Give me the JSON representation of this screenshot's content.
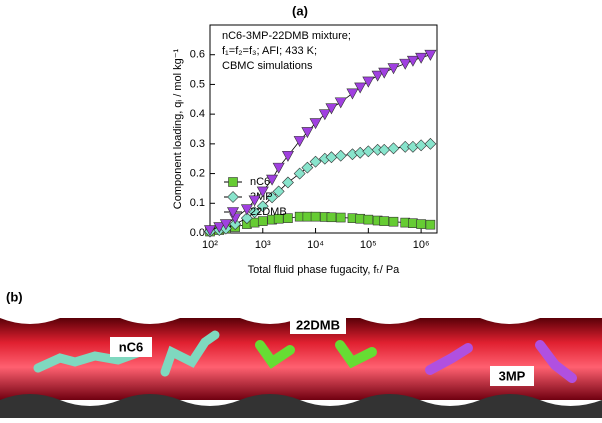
{
  "panel_labels": [
    "(a)",
    "(b)"
  ],
  "chart_data": {
    "type": "line",
    "annotations": [
      "nC6-3MP-22DMB mixture;",
      "f₁=f₂=f₃; AFI; 433 K;",
      "CBMC simulations"
    ],
    "x_label": "Total fluid phase fugacity, fₜ/ Pa",
    "y_label": "Component loading, qᵢ / mol kg⁻¹",
    "x": [
      100,
      150,
      200,
      300,
      500,
      700,
      1000,
      1500,
      2000,
      3000,
      5000,
      7000,
      10000,
      15000,
      20000,
      30000,
      50000,
      70000,
      100000,
      150000,
      200000,
      300000,
      500000,
      700000,
      1000000,
      1500000
    ],
    "series": [
      {
        "name": "nC6",
        "color": "#66cc33",
        "marker": "square",
        "values": [
          0.005,
          0.01,
          0.015,
          0.02,
          0.03,
          0.035,
          0.04,
          0.045,
          0.048,
          0.05,
          0.055,
          0.055,
          0.055,
          0.054,
          0.053,
          0.052,
          0.05,
          0.048,
          0.045,
          0.042,
          0.04,
          0.038,
          0.035,
          0.033,
          0.03,
          0.028
        ]
      },
      {
        "name": "3MP",
        "color": "#88e4cc",
        "marker": "diamond",
        "values": [
          0.005,
          0.01,
          0.015,
          0.03,
          0.05,
          0.07,
          0.09,
          0.12,
          0.14,
          0.17,
          0.2,
          0.22,
          0.24,
          0.25,
          0.255,
          0.26,
          0.265,
          0.27,
          0.275,
          0.28,
          0.28,
          0.285,
          0.29,
          0.29,
          0.295,
          0.3
        ]
      },
      {
        "name": "22DMB",
        "color": "#a040e0",
        "marker": "triangle-down",
        "values": [
          0.01,
          0.02,
          0.03,
          0.05,
          0.08,
          0.11,
          0.14,
          0.18,
          0.22,
          0.26,
          0.31,
          0.34,
          0.37,
          0.4,
          0.42,
          0.44,
          0.47,
          0.49,
          0.51,
          0.53,
          0.54,
          0.555,
          0.57,
          0.58,
          0.59,
          0.6
        ]
      }
    ],
    "xlog": true,
    "xlim": [
      100,
      2000000
    ],
    "xticks": [
      {
        "value": 100,
        "label": "10²"
      },
      {
        "value": 1000,
        "label": "10³"
      },
      {
        "value": 10000,
        "label": "10⁴"
      },
      {
        "value": 100000,
        "label": "10⁵"
      },
      {
        "value": 1000000,
        "label": "10⁶"
      }
    ],
    "ylim": [
      0,
      0.7
    ],
    "yticks": [
      {
        "value": 0,
        "label": "0.0"
      },
      0.1,
      0.2,
      0.3,
      0.4,
      0.5,
      0.6
    ],
    "legend": "upper left"
  },
  "image_labels": [
    "nC6",
    "22DMB",
    "3MP"
  ]
}
